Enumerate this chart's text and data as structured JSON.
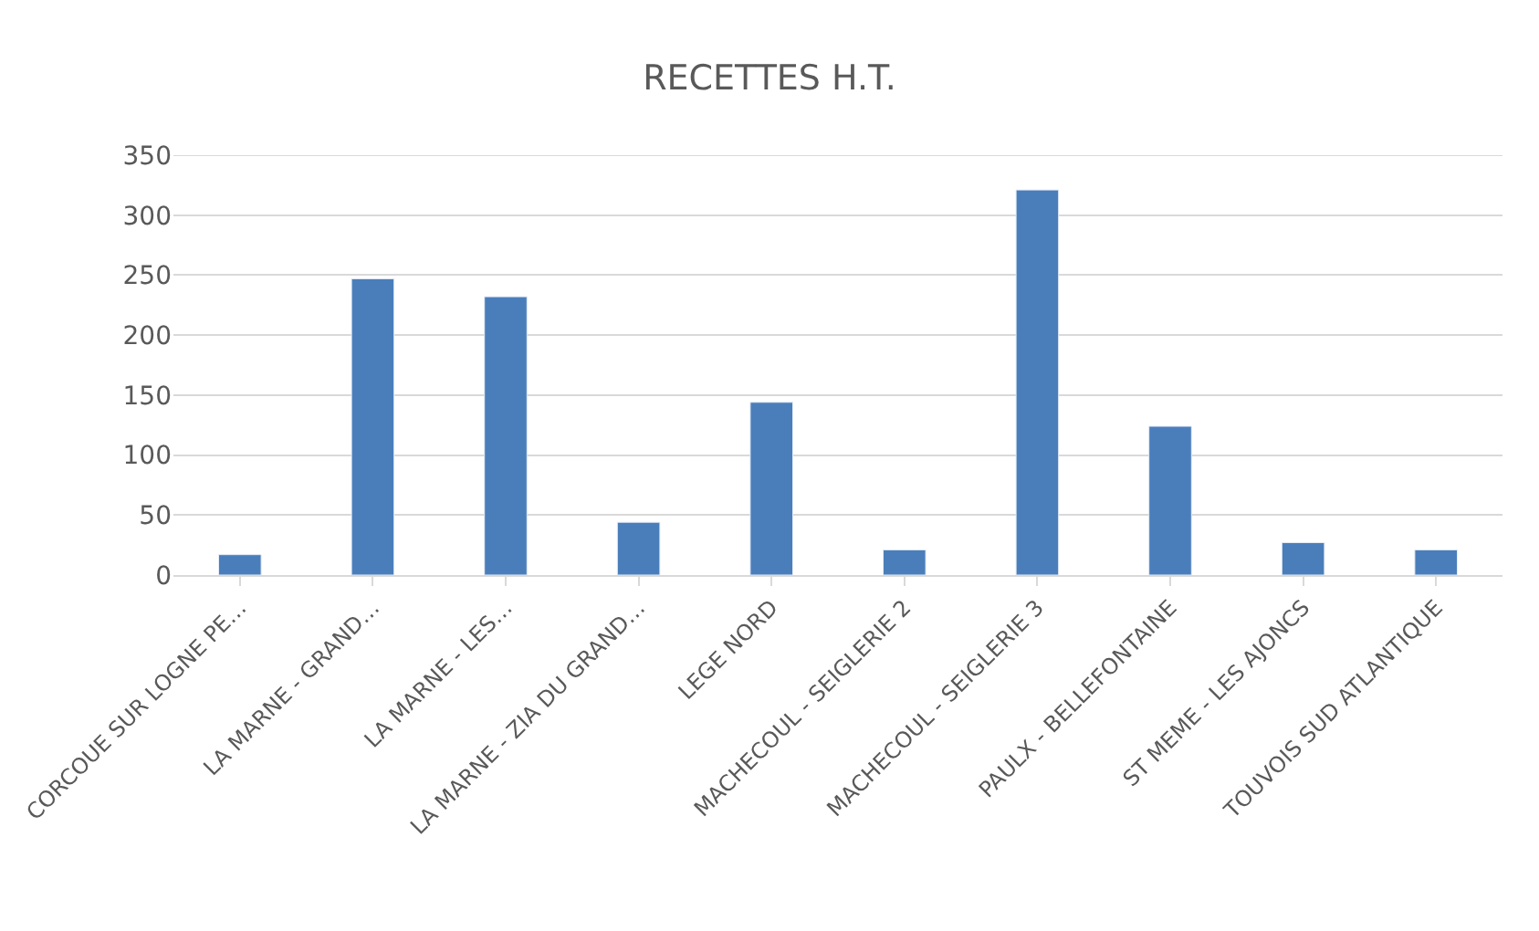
{
  "chart_data": {
    "type": "bar",
    "title": "RECETTES H.T.",
    "categories": [
      "CORCOUE SUR LOGNE PE…",
      "LA MARNE - GRAND…",
      "LA MARNE - LES…",
      "LA MARNE - ZIA DU GRAND…",
      "LEGE NORD",
      "MACHECOUL - SEIGLERIE 2",
      "MACHECOUL - SEIGLERIE 3",
      "PAULX - BELLEFONTAINE",
      "ST MEME - LES AJONCS",
      "TOUVOIS SUD ATLANTIQUE"
    ],
    "values": [
      17,
      247,
      232,
      44,
      144,
      21,
      321,
      124,
      27,
      21
    ],
    "color": "#4a7ebb",
    "ylim": [
      0,
      350
    ],
    "yticks": [
      0,
      50,
      100,
      150,
      200,
      250,
      300,
      350
    ],
    "grid": "y"
  }
}
